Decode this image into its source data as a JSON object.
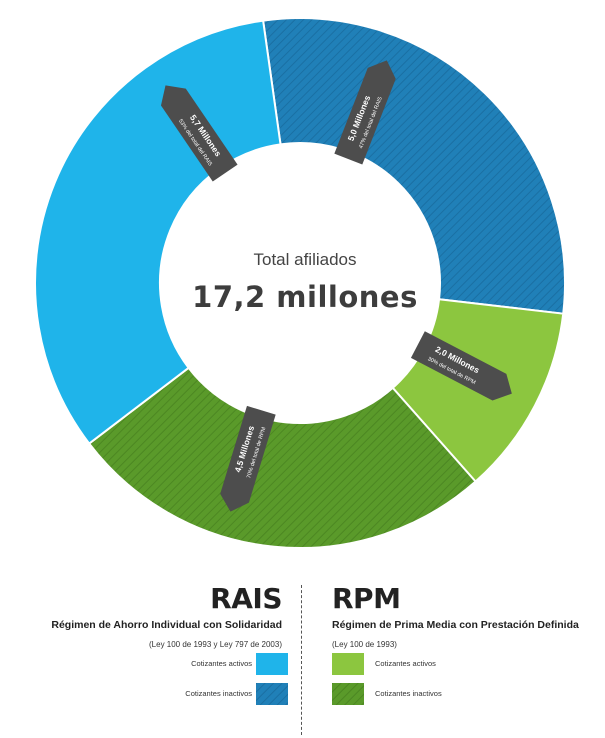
{
  "colors": {
    "rais_active": "#1fb4ea",
    "rais_inactive": "#2080b8",
    "rpm_active": "#8cc63f",
    "rpm_inactive": "#5a9a2a",
    "callout": "#4d4d4d"
  },
  "chart_data": {
    "type": "pie",
    "center_sub": "Total afiliados",
    "center_main": "17,2 millones",
    "slices": [
      {
        "name": "RAIS Cotizantes inactivos",
        "value": 5.0,
        "callout_value": "5,0 Millones",
        "callout_note": "47% del total del RAIS"
      },
      {
        "name": "RPM Cotizantes activos",
        "value": 2.0,
        "callout_value": "2,0 Millones",
        "callout_note": "30% del total de RPM"
      },
      {
        "name": "RPM Cotizantes inactivos",
        "value": 4.5,
        "callout_value": "4,5 Millones",
        "callout_note": "70% del total de RPM"
      },
      {
        "name": "RAIS Cotizantes activos",
        "value": 5.7,
        "callout_value": "5,7 Millones",
        "callout_note": "53% del total del RAIS"
      }
    ]
  },
  "legend": {
    "rais": {
      "title": "RAIS",
      "subtitle": "Régimen de Ahorro Individual con Solidaridad",
      "law": "(Ley 100 de 1993 y Ley 797 de 2003)",
      "active_label": "Cotizantes activos",
      "inactive_label": "Cotizantes inactivos"
    },
    "rpm": {
      "title": "RPM",
      "subtitle": "Régimen de Prima Media con Prestación Definida",
      "law": "(Ley 100 de 1993)",
      "active_label": "Cotizantes activos",
      "inactive_label": "Cotizantes inactivos"
    }
  }
}
